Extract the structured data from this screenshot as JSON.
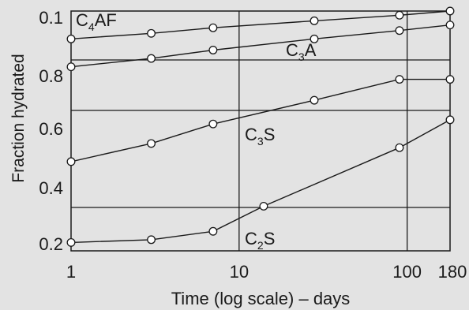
{
  "chart_data": {
    "type": "line",
    "xlabel": "Time (log scale) – days",
    "ylabel": "Fraction hydrated",
    "x_scale": "log",
    "xlim": [
      1,
      180
    ],
    "x_ticks": [
      {
        "value": 1,
        "label": "1"
      },
      {
        "value": 10,
        "label": "10"
      },
      {
        "value": 100,
        "label": "100"
      },
      {
        "value": 180,
        "label": "180"
      }
    ],
    "y_ticks": [
      {
        "label": "0.1"
      },
      {
        "label": "0.8"
      },
      {
        "label": "0.6"
      },
      {
        "label": "0.4"
      },
      {
        "label": "0.2"
      }
    ],
    "grid": true,
    "series": [
      {
        "name": "C4AF",
        "label_main": "C",
        "label_sub": "4",
        "label_rest": "AF",
        "points": [
          [
            1,
            0.9
          ],
          [
            3,
            0.92
          ],
          [
            7,
            0.94
          ],
          [
            28,
            0.965
          ],
          [
            90,
            0.985
          ],
          [
            180,
            1.0
          ]
        ]
      },
      {
        "name": "C3A",
        "label_main": "C",
        "label_sub": "3",
        "label_rest": "A",
        "points": [
          [
            1,
            0.8
          ],
          [
            3,
            0.83
          ],
          [
            7,
            0.86
          ],
          [
            28,
            0.9
          ],
          [
            90,
            0.93
          ],
          [
            180,
            0.95
          ]
        ]
      },
      {
        "name": "C3S",
        "label_main": "C",
        "label_sub": "3",
        "label_rest": "S",
        "points": [
          [
            1,
            0.46
          ],
          [
            3,
            0.525
          ],
          [
            7,
            0.595
          ],
          [
            28,
            0.68
          ],
          [
            90,
            0.755
          ],
          [
            180,
            0.755
          ]
        ]
      },
      {
        "name": "C2S",
        "label_main": "C",
        "label_sub": "2",
        "label_rest": "S",
        "points": [
          [
            1,
            0.17
          ],
          [
            3,
            0.18
          ],
          [
            7,
            0.21
          ],
          [
            14,
            0.3
          ],
          [
            90,
            0.51
          ],
          [
            180,
            0.61
          ]
        ]
      }
    ]
  }
}
